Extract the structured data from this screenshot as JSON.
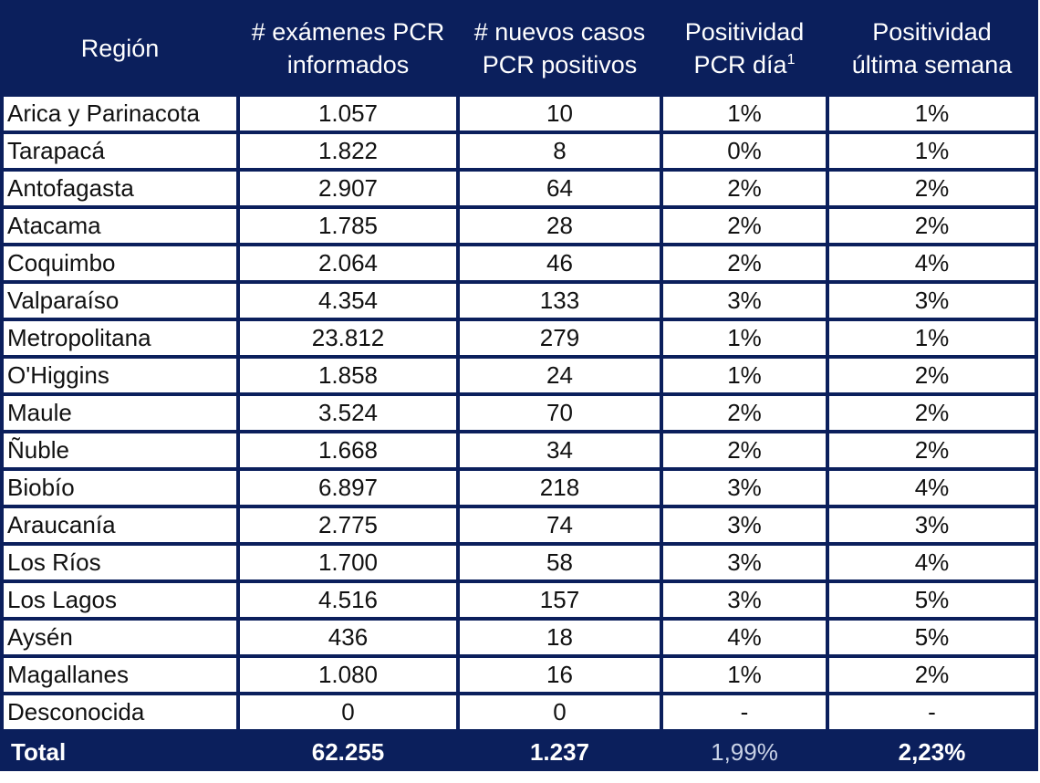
{
  "header": {
    "region": "Región",
    "exams_line1": "# exámenes PCR",
    "exams_line2": "informados",
    "cases_line1": "# nuevos casos",
    "cases_line2": "PCR positivos",
    "pos_day_line1": "Positividad",
    "pos_day_line2": "PCR día",
    "pos_day_sup": "1",
    "pos_week_line1": "Positividad",
    "pos_week_line2": "última semana"
  },
  "rows": [
    {
      "region": "Arica y Parinacota",
      "exams": "1.057",
      "cases": "10",
      "pos_day": "1%",
      "pos_week": "1%"
    },
    {
      "region": "Tarapacá",
      "exams": "1.822",
      "cases": "8",
      "pos_day": "0%",
      "pos_week": "1%"
    },
    {
      "region": "Antofagasta",
      "exams": "2.907",
      "cases": "64",
      "pos_day": "2%",
      "pos_week": "2%"
    },
    {
      "region": "Atacama",
      "exams": "1.785",
      "cases": "28",
      "pos_day": "2%",
      "pos_week": "2%"
    },
    {
      "region": "Coquimbo",
      "exams": "2.064",
      "cases": "46",
      "pos_day": "2%",
      "pos_week": "4%"
    },
    {
      "region": "Valparaíso",
      "exams": "4.354",
      "cases": "133",
      "pos_day": "3%",
      "pos_week": "3%"
    },
    {
      "region": "Metropolitana",
      "exams": "23.812",
      "cases": "279",
      "pos_day": "1%",
      "pos_week": "1%"
    },
    {
      "region": "O'Higgins",
      "exams": "1.858",
      "cases": "24",
      "pos_day": "1%",
      "pos_week": "2%"
    },
    {
      "region": "Maule",
      "exams": "3.524",
      "cases": "70",
      "pos_day": "2%",
      "pos_week": "2%"
    },
    {
      "region": "Ñuble",
      "exams": "1.668",
      "cases": "34",
      "pos_day": "2%",
      "pos_week": "2%"
    },
    {
      "region": "Biobío",
      "exams": "6.897",
      "cases": "218",
      "pos_day": "3%",
      "pos_week": "4%"
    },
    {
      "region": "Araucanía",
      "exams": "2.775",
      "cases": "74",
      "pos_day": "3%",
      "pos_week": "3%"
    },
    {
      "region": "Los Ríos",
      "exams": "1.700",
      "cases": "58",
      "pos_day": "3%",
      "pos_week": "4%"
    },
    {
      "region": "Los Lagos",
      "exams": "4.516",
      "cases": "157",
      "pos_day": "3%",
      "pos_week": "5%"
    },
    {
      "region": "Aysén",
      "exams": "436",
      "cases": "18",
      "pos_day": "4%",
      "pos_week": "5%"
    },
    {
      "region": "Magallanes",
      "exams": "1.080",
      "cases": "16",
      "pos_day": "1%",
      "pos_week": "2%"
    },
    {
      "region": "Desconocida",
      "exams": "0",
      "cases": "0",
      "pos_day": "-",
      "pos_week": "-"
    }
  ],
  "total": {
    "region": "Total",
    "exams": "62.255",
    "cases": "1.237",
    "pos_day": "1,99%",
    "pos_week": "2,23%"
  },
  "colors": {
    "header_bg": "#0b1f5c",
    "cell_bg": "#ffffff",
    "muted_total": "#c9d2e6"
  }
}
